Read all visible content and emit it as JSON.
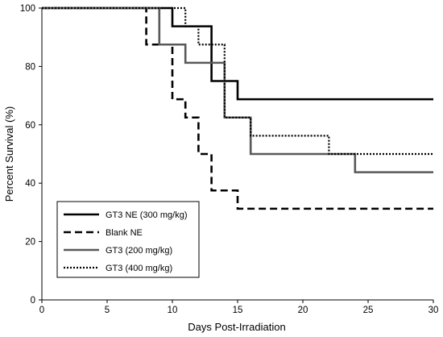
{
  "chart_data": {
    "type": "line",
    "step": true,
    "xlabel": "Days Post-Irradiation",
    "ylabel": "Percent Survival (%)",
    "xlim": [
      0,
      30
    ],
    "ylim": [
      0,
      100
    ],
    "xticks": [
      0,
      5,
      10,
      15,
      20,
      25,
      30
    ],
    "yticks": [
      0,
      20,
      40,
      60,
      80,
      100
    ],
    "grid": false,
    "legend_position": "bottom-left",
    "series": [
      {
        "name": "GT3 NE (300 mg/kg)",
        "color": "#000000",
        "style": "solid",
        "x": [
          0,
          10,
          13,
          15,
          30
        ],
        "y": [
          100,
          93.75,
          75,
          68.75,
          68.75
        ]
      },
      {
        "name": "Blank NE",
        "color": "#000000",
        "style": "dashed",
        "x": [
          0,
          8,
          10,
          11,
          12,
          13,
          15,
          30
        ],
        "y": [
          100,
          87.5,
          68.75,
          62.5,
          50,
          37.5,
          31.25,
          31.25
        ]
      },
      {
        "name": "GT3 (200 mg/kg)",
        "color": "#595959",
        "style": "solid",
        "x": [
          0,
          9,
          11,
          14,
          16,
          24,
          30
        ],
        "y": [
          100,
          87.5,
          81.25,
          62.5,
          50,
          43.75,
          43.75
        ]
      },
      {
        "name": "GT3 (400 mg/kg)",
        "color": "#000000",
        "style": "dotted",
        "x": [
          0,
          11,
          12,
          14,
          16,
          22,
          30
        ],
        "y": [
          100,
          93.75,
          87.5,
          62.5,
          56.25,
          50,
          50
        ]
      }
    ]
  }
}
